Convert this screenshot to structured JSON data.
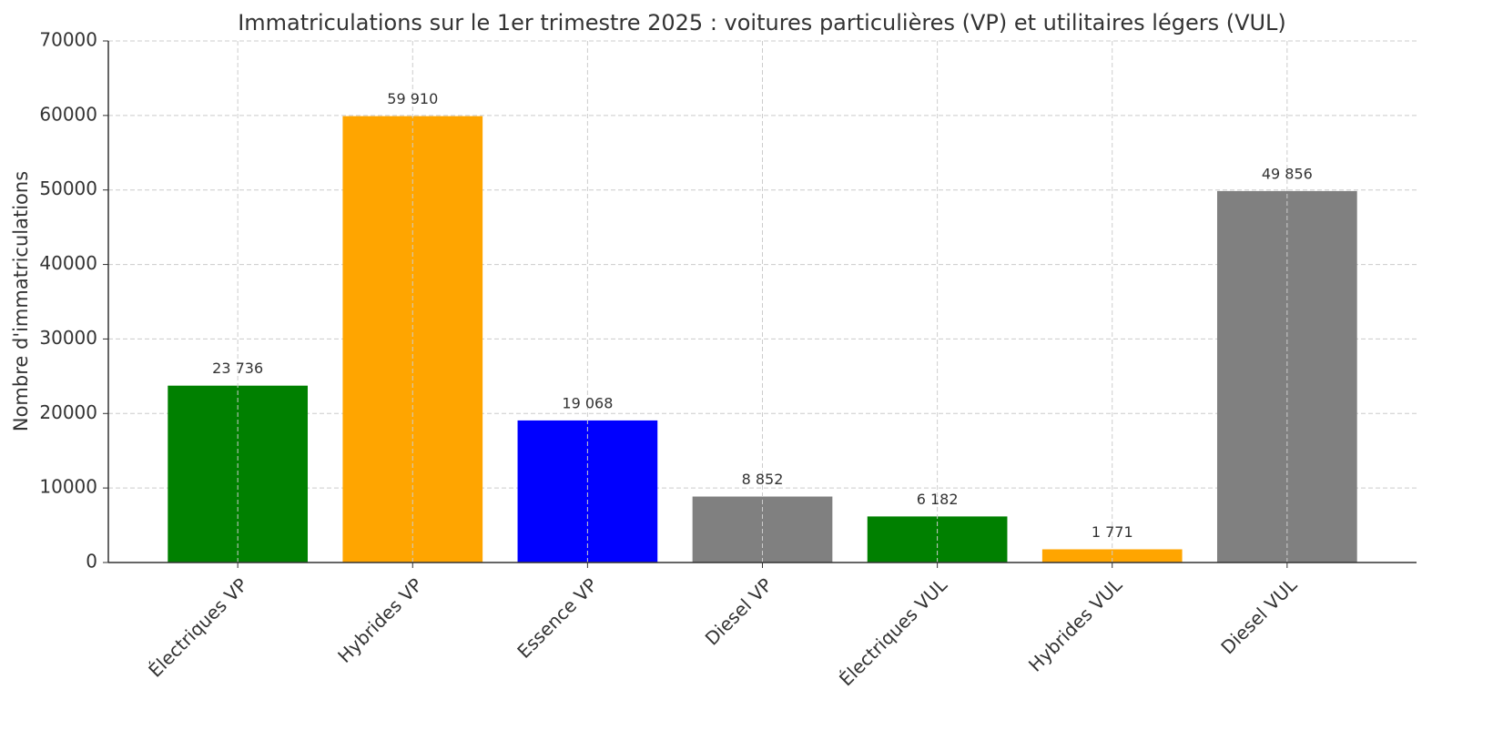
{
  "chart_data": {
    "type": "bar",
    "title": "Immatriculations sur le 1er trimestre 2025 : voitures particulières (VP) et utilitaires légers (VUL)",
    "y_label": "Nombre d'immatriculations",
    "categories": [
      "Électriques VP",
      "Hybrides VP",
      "Essence VP",
      "Diesel VP",
      "Électriques VUL",
      "Hybrides VUL",
      "Diesel VUL"
    ],
    "values": [
      23736,
      59910,
      19068,
      8852,
      6182,
      1771,
      49856
    ],
    "value_labels": [
      "23 736",
      "59 910",
      "19 068",
      "8 852",
      "6 182",
      "1 771",
      "49 856"
    ],
    "colors": [
      "#008000",
      "#ffa500",
      "#0000ff",
      "#808080",
      "#008000",
      "#ffa500",
      "#808080"
    ],
    "ylim": [
      0,
      70000
    ],
    "yticks": [
      0,
      10000,
      20000,
      30000,
      40000,
      50000,
      60000,
      70000
    ],
    "grid": true
  }
}
